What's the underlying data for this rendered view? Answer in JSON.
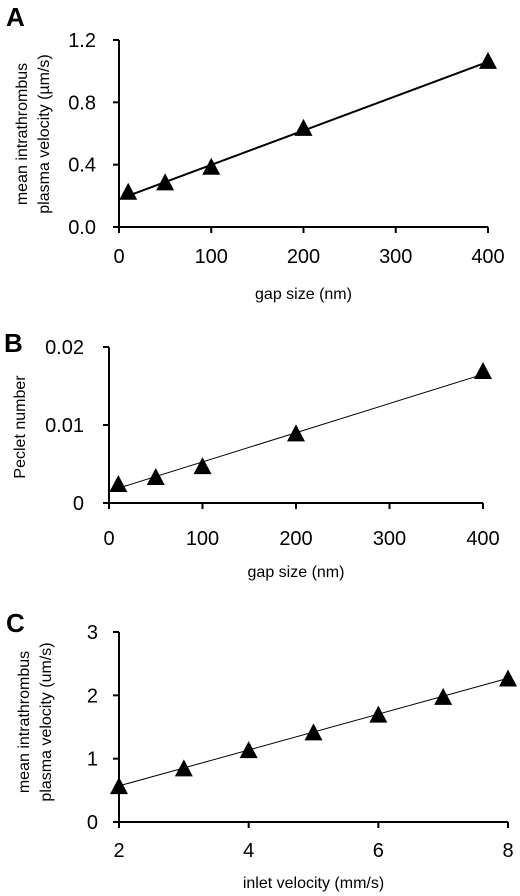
{
  "chart_data": [
    {
      "type": "scatter",
      "panel_label": "A",
      "xlabel": "gap size (nm)",
      "ylabel_lines": [
        "mean intrathrombus",
        "plasma velocity (µm/s)"
      ],
      "xlim": [
        0,
        400
      ],
      "ylim": [
        0.0,
        1.2
      ],
      "xticks": [
        0,
        100,
        200,
        300,
        400
      ],
      "xtick_labels": [
        "0",
        "100",
        "200",
        "300",
        "400"
      ],
      "yticks": [
        0.0,
        0.4,
        0.8,
        1.2
      ],
      "ytick_labels": [
        "0.0",
        "0.4",
        "0.8",
        "1.2"
      ],
      "x": [
        10,
        50,
        100,
        200,
        400
      ],
      "y": [
        0.22,
        0.28,
        0.38,
        0.63,
        1.06
      ],
      "trendline": {
        "kind": "linear",
        "x": [
          10,
          400
        ],
        "y": [
          0.2,
          1.06
        ]
      },
      "marker": "triangle",
      "color": "#000000"
    },
    {
      "type": "scatter",
      "panel_label": "B",
      "xlabel": "gap size (nm)",
      "ylabel_lines": [
        "Peclet number"
      ],
      "xlim": [
        0,
        400
      ],
      "ylim": [
        0,
        0.02
      ],
      "xticks": [
        0,
        100,
        200,
        300,
        400
      ],
      "xtick_labels": [
        "0",
        "100",
        "200",
        "300",
        "400"
      ],
      "yticks": [
        0,
        0.01,
        0.02
      ],
      "ytick_labels": [
        "0",
        "0.01",
        "0.02"
      ],
      "x": [
        10,
        50,
        100,
        200,
        400
      ],
      "y": [
        0.0023,
        0.0032,
        0.0046,
        0.0088,
        0.0168
      ],
      "trendline": {
        "kind": "linear",
        "x": [
          10,
          400
        ],
        "y": [
          0.0019,
          0.0165
        ]
      },
      "marker": "triangle",
      "color": "#000000"
    },
    {
      "type": "scatter",
      "panel_label": "C",
      "xlabel": "inlet velocity (mm/s)",
      "ylabel_lines": [
        "mean intrathrombus",
        "plasma velocity (um/s)"
      ],
      "xlim": [
        2,
        8
      ],
      "ylim": [
        0,
        3
      ],
      "xticks": [
        2,
        4,
        6,
        8
      ],
      "xtick_labels": [
        "2",
        "4",
        "6",
        "8"
      ],
      "yticks": [
        0,
        1,
        2,
        3
      ],
      "ytick_labels": [
        "0",
        "1",
        "2",
        "3"
      ],
      "x": [
        2,
        3,
        4,
        5,
        6,
        7,
        8
      ],
      "y": [
        0.55,
        0.83,
        1.12,
        1.4,
        1.68,
        1.96,
        2.25
      ],
      "trendline": {
        "kind": "linear",
        "x": [
          2,
          8
        ],
        "y": [
          0.57,
          2.27
        ]
      },
      "marker": "triangle",
      "color": "#000000"
    }
  ]
}
